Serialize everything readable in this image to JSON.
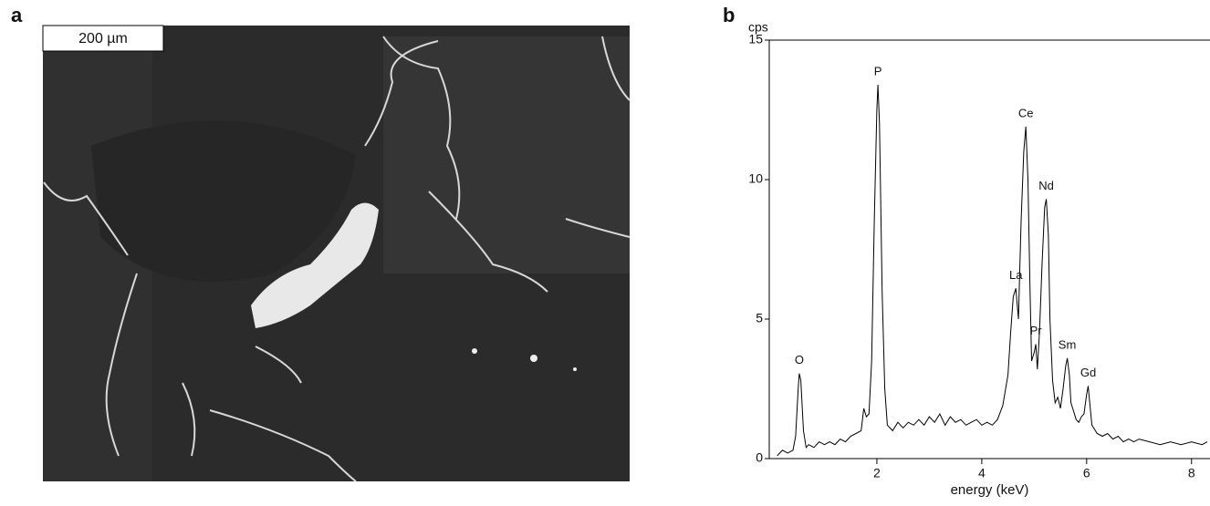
{
  "panel_labels": [
    "a",
    "b"
  ],
  "image": {
    "scale_bar": "200 µm"
  },
  "chart_data": {
    "type": "line",
    "ylabel": "cps",
    "xlabel": "energy (keV)",
    "x": [
      0.1,
      0.2,
      0.3,
      0.4,
      0.45,
      0.5,
      0.52,
      0.55,
      0.6,
      0.65,
      0.7,
      0.8,
      0.9,
      1.0,
      1.1,
      1.2,
      1.3,
      1.4,
      1.5,
      1.6,
      1.7,
      1.75,
      1.8,
      1.85,
      1.9,
      1.95,
      2.0,
      2.02,
      2.05,
      2.1,
      2.15,
      2.2,
      2.3,
      2.4,
      2.5,
      2.6,
      2.7,
      2.8,
      2.9,
      3.0,
      3.1,
      3.2,
      3.3,
      3.4,
      3.5,
      3.6,
      3.7,
      3.8,
      3.9,
      4.0,
      4.1,
      4.2,
      4.3,
      4.4,
      4.5,
      4.55,
      4.6,
      4.65,
      4.7,
      4.72,
      4.75,
      4.8,
      4.84,
      4.88,
      4.92,
      4.95,
      5.0,
      5.03,
      5.06,
      5.1,
      5.15,
      5.2,
      5.23,
      5.27,
      5.3,
      5.35,
      5.4,
      5.45,
      5.5,
      5.55,
      5.6,
      5.63,
      5.67,
      5.7,
      5.75,
      5.8,
      5.85,
      5.9,
      5.95,
      6.0,
      6.03,
      6.07,
      6.1,
      6.2,
      6.3,
      6.4,
      6.5,
      6.6,
      6.7,
      6.8,
      6.9,
      7.0,
      7.2,
      7.4,
      7.6,
      7.8,
      8.0,
      8.2,
      8.3
    ],
    "series": [
      {
        "color": "#000000",
        "values": [
          0.1,
          0.3,
          0.2,
          0.3,
          0.8,
          2.5,
          3.05,
          2.8,
          1.0,
          0.4,
          0.5,
          0.4,
          0.6,
          0.5,
          0.6,
          0.5,
          0.7,
          0.6,
          0.8,
          0.9,
          1.0,
          1.8,
          1.5,
          1.6,
          3.5,
          8.5,
          12.5,
          13.4,
          12.0,
          6.0,
          2.5,
          1.2,
          1.0,
          1.3,
          1.1,
          1.3,
          1.2,
          1.4,
          1.2,
          1.5,
          1.3,
          1.6,
          1.2,
          1.5,
          1.3,
          1.4,
          1.2,
          1.3,
          1.4,
          1.2,
          1.3,
          1.2,
          1.4,
          1.9,
          3.0,
          4.5,
          5.8,
          6.1,
          5.0,
          6.5,
          8.5,
          11.0,
          11.9,
          10.0,
          6.0,
          3.5,
          3.8,
          4.1,
          3.2,
          4.5,
          7.0,
          9.0,
          9.3,
          8.0,
          5.0,
          2.8,
          2.0,
          2.2,
          1.8,
          2.5,
          3.3,
          3.6,
          3.0,
          2.0,
          1.7,
          1.4,
          1.3,
          1.5,
          1.6,
          2.3,
          2.6,
          1.8,
          1.2,
          0.9,
          0.8,
          0.9,
          0.7,
          0.8,
          0.6,
          0.7,
          0.6,
          0.7,
          0.6,
          0.5,
          0.6,
          0.5,
          0.6,
          0.5,
          0.6
        ]
      }
    ],
    "annotations": [
      {
        "text": "O",
        "x": 0.52,
        "y": 3.05
      },
      {
        "text": "P",
        "x": 2.02,
        "y": 13.4
      },
      {
        "text": "Ce",
        "x": 4.84,
        "y": 11.9
      },
      {
        "text": "Nd",
        "x": 5.23,
        "y": 9.3
      },
      {
        "text": "La",
        "x": 4.65,
        "y": 6.1
      },
      {
        "text": "Pr",
        "x": 5.03,
        "y": 4.1
      },
      {
        "text": "Sm",
        "x": 5.63,
        "y": 3.6
      },
      {
        "text": "Gd",
        "x": 6.03,
        "y": 2.6
      }
    ],
    "xlim": [
      0,
      8.3
    ],
    "ylim": [
      0,
      15
    ],
    "xticks": [
      2,
      4,
      6,
      8
    ],
    "yticks": [
      0,
      5,
      10,
      15
    ]
  }
}
